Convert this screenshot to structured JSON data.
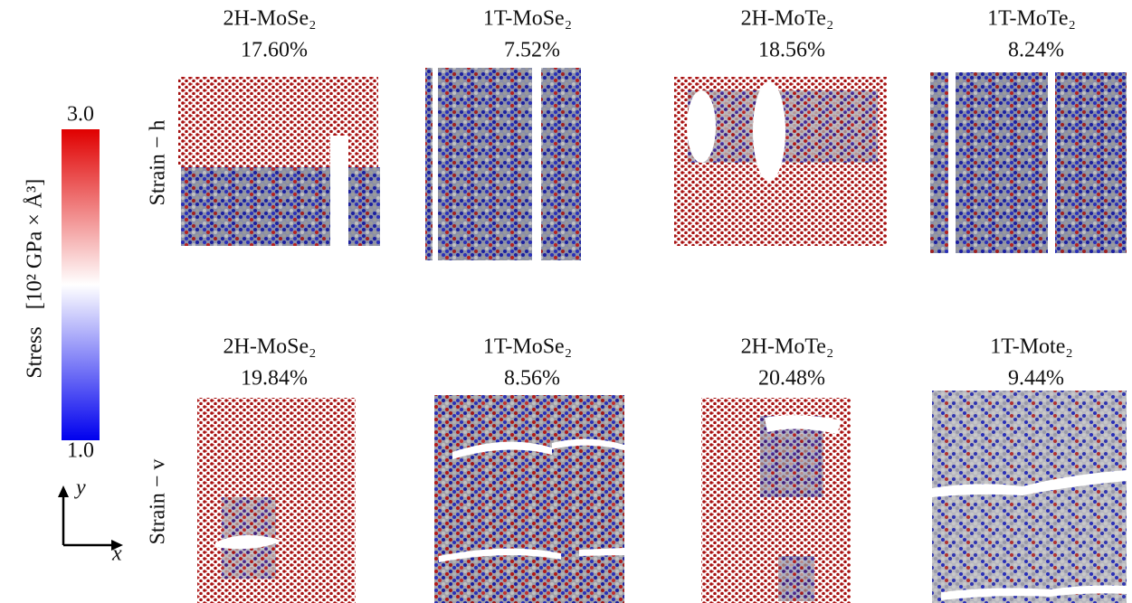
{
  "colorbar": {
    "label": "Stress",
    "unit": "[10² GPa × Å³]",
    "max_label": "3.0",
    "min_label": "1.0"
  },
  "axes": {
    "y_label": "y",
    "x_label": "x"
  },
  "rows": [
    {
      "label": "Strain − h",
      "panels": [
        {
          "material": "2H-MoSe₂",
          "strain": "17.60%"
        },
        {
          "material": "1T-MoSe₂",
          "strain": "7.52%"
        },
        {
          "material": "2H-MoTe₂",
          "strain": "18.56%"
        },
        {
          "material": "1T-MoTe₂",
          "strain": "8.24%"
        }
      ]
    },
    {
      "label": "Strain − v",
      "panels": [
        {
          "material": "2H-MoSe₂",
          "strain": "19.84%"
        },
        {
          "material": "1T-MoSe₂",
          "strain": "8.56%"
        },
        {
          "material": "2H-MoTe₂",
          "strain": "20.48%"
        },
        {
          "material": "1T-Mote₂",
          "strain": "9.44%"
        }
      ]
    }
  ]
}
